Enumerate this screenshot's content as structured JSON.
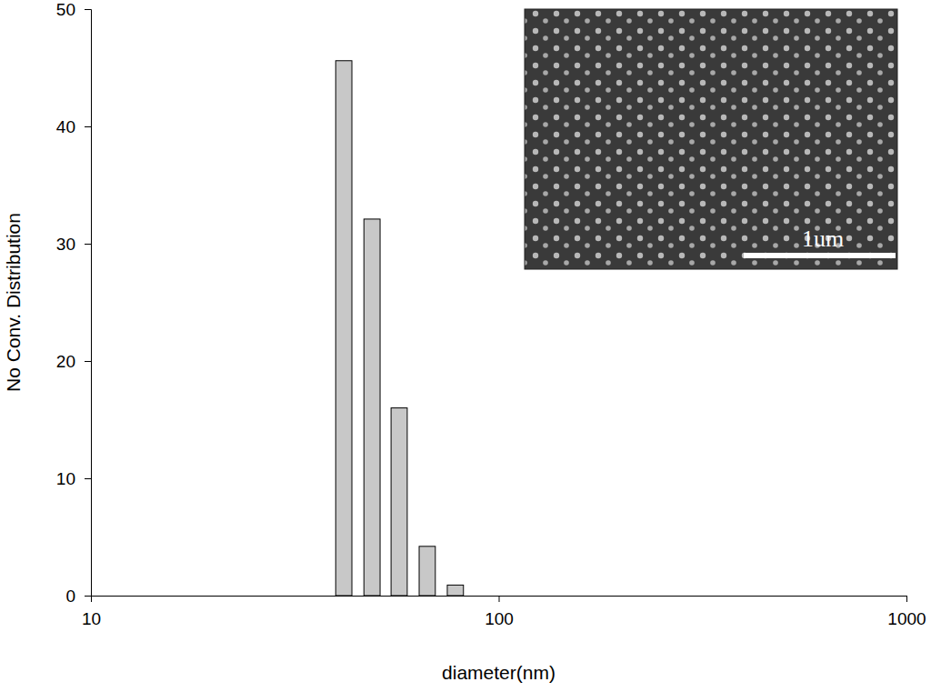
{
  "chart_data": {
    "type": "bar",
    "x_label": "diameter(nm)",
    "y_label": "No Conv. Distribution",
    "x": [
      41.7,
      48.9,
      57.0,
      66.8,
      78.3
    ],
    "values": [
      45.6,
      32.1,
      16.0,
      4.2,
      0.9
    ],
    "color": "#c8c8c8",
    "log": "x",
    "xlim": [
      10,
      1000
    ],
    "xticks": [
      10,
      100,
      1000
    ],
    "ylim": [
      0,
      50
    ],
    "yticks": [
      0,
      10,
      20,
      30,
      40,
      50
    ],
    "annotation": "1um"
  }
}
